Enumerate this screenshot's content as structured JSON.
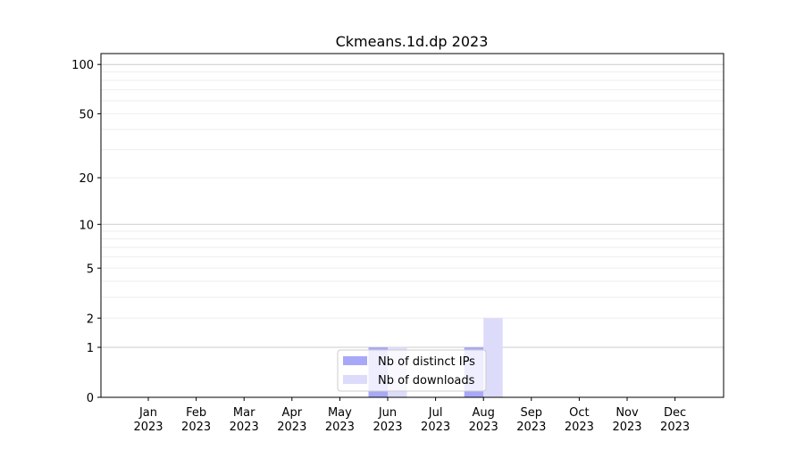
{
  "chart_data": {
    "type": "bar",
    "title": "Ckmeans.1d.dp 2023",
    "xlabel": "",
    "ylabel": "",
    "y_scale": "log(1+y)",
    "ylim": [
      0,
      116
    ],
    "y_ticks": [
      0,
      1,
      2,
      5,
      10,
      20,
      50,
      100
    ],
    "y_tick_labels": [
      "0",
      "1",
      "2",
      "5",
      "10",
      "20",
      "50",
      "100"
    ],
    "grid": true,
    "legend_position": "lower-center",
    "categories": [
      "Jan\n2023",
      "Feb\n2023",
      "Mar\n2023",
      "Apr\n2023",
      "May\n2023",
      "Jun\n2023",
      "Jul\n2023",
      "Aug\n2023",
      "Sep\n2023",
      "Oct\n2023",
      "Nov\n2023",
      "Dec\n2023"
    ],
    "series": [
      {
        "name": "Nb of distinct IPs",
        "color": "#a8a8f8",
        "values": [
          0,
          0,
          0,
          0,
          0,
          1,
          0,
          1,
          0,
          0,
          0,
          0
        ]
      },
      {
        "name": "Nb of downloads",
        "color": "#dcdcfa",
        "values": [
          0,
          0,
          0,
          0,
          0,
          1,
          0,
          2,
          0,
          0,
          0,
          0
        ]
      }
    ]
  }
}
